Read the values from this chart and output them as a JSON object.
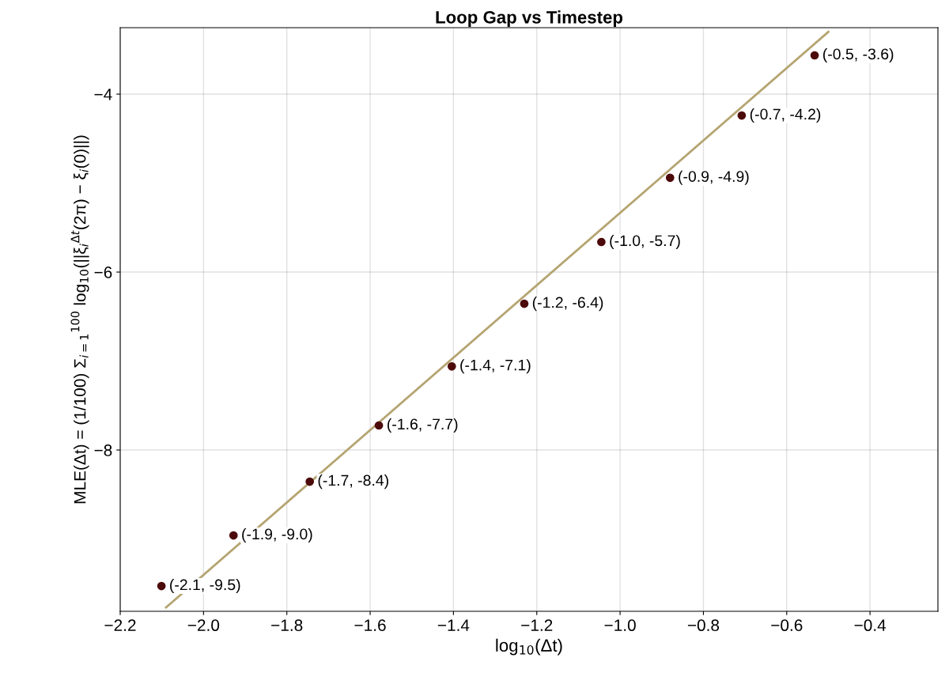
{
  "chart_data": {
    "type": "scatter",
    "title": "Loop Gap vs Timestep",
    "xlabel": "log$_{10}$(Δt)",
    "ylabel": "MLE(Δt) = (1/100) Σ$_{i=1}$$^{100}$ log$_{10}$(||ξ$_{i}$$^{Δt}$(2π) − ξ$_{i}$(0)||)",
    "series": [
      {
        "marker": "circle",
        "color": "#4d0a0a",
        "x": [
          -2.101,
          -1.928,
          -1.745,
          -1.579,
          -1.404,
          -1.23,
          -1.045,
          -0.88,
          -0.708,
          -0.533
        ],
        "values": [
          -9.529,
          -8.96,
          -8.356,
          -7.724,
          -7.06,
          -6.356,
          -5.662,
          -4.94,
          -4.24,
          -3.564
        ],
        "value_labels": [
          "(-2.1, -9.5)",
          "(-1.9, -9.0)",
          "(-1.7, -8.4)",
          "(-1.6, -7.7)",
          "(-1.4, -7.1)",
          "(-1.2, -6.4)",
          "(-1.0, -5.7)",
          "(-0.9, -4.9)",
          "(-0.7, -4.2)",
          "(-0.5, -3.6)"
        ]
      },
      {
        "type": "line",
        "marker": "none",
        "color": "#b5a572",
        "x": [
          -2.09,
          -0.5
        ],
        "values": [
          -9.77,
          -3.3
        ]
      }
    ],
    "xlim": [
      -2.2,
      -0.237
    ],
    "ylim": [
      -9.813,
      -3.253
    ],
    "xticks": [
      {
        "value": -2.2,
        "label": "−2.2"
      },
      {
        "value": -2.0,
        "label": "−2.0"
      },
      {
        "value": -1.8,
        "label": "−1.8"
      },
      {
        "value": -1.6,
        "label": "−1.6"
      },
      {
        "value": -1.4,
        "label": "−1.4"
      },
      {
        "value": -1.2,
        "label": "−1.2"
      },
      {
        "value": -1.0,
        "label": "−1.0"
      },
      {
        "value": -0.8,
        "label": "−0.8"
      },
      {
        "value": -0.6,
        "label": "−0.6"
      },
      {
        "value": -0.4,
        "label": "−0.4"
      }
    ],
    "yticks": [
      {
        "value": -4,
        "label": "−4"
      },
      {
        "value": -6,
        "label": "−6"
      },
      {
        "value": -8,
        "label": "−8"
      }
    ],
    "grid": true,
    "line_style": "solid"
  }
}
